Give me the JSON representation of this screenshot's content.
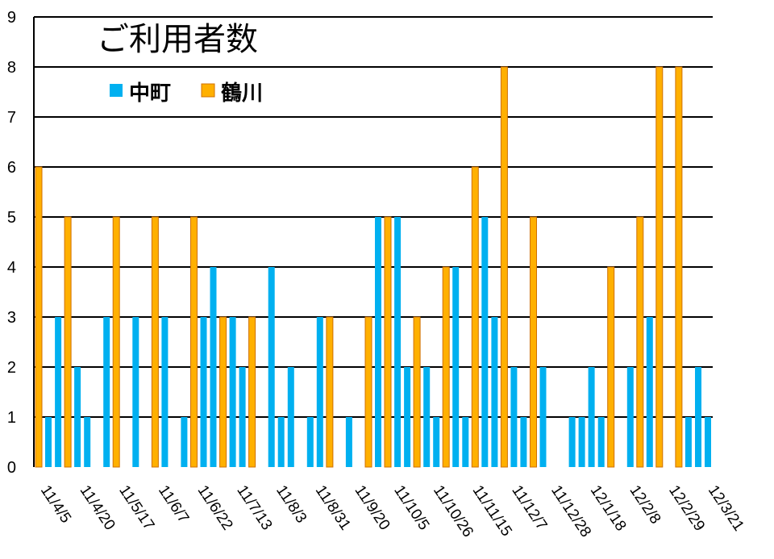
{
  "chart_data": {
    "type": "bar",
    "title": "ご利用者数",
    "xlabel": "",
    "ylabel": "",
    "ylim": [
      0,
      9
    ],
    "yticks": [
      0,
      1,
      2,
      3,
      4,
      5,
      6,
      7,
      8,
      9
    ],
    "grid": true,
    "legend_position": "top-left",
    "x_tick_labels": [
      "11/4/5",
      "11/4/20",
      "11/5/17",
      "11/6/7",
      "11/6/22",
      "11/7/13",
      "11/8/3",
      "11/8/31",
      "11/9/20",
      "11/10/5",
      "11/10/26",
      "11/11/15",
      "11/12/7",
      "11/12/28",
      "12/1/18",
      "12/2/8",
      "12/2/29",
      "12/3/21"
    ],
    "series": [
      {
        "name": "中町",
        "color": "#00B0F0",
        "values": [
          0,
          1,
          3,
          0,
          2,
          1,
          0,
          3,
          0,
          0,
          3,
          0,
          0,
          3,
          0,
          1,
          0,
          3,
          4,
          0,
          3,
          2,
          0,
          0,
          4,
          1,
          2,
          0,
          1,
          3,
          0,
          0,
          1,
          0,
          0,
          5,
          0,
          5,
          2,
          0,
          2,
          1,
          0,
          4,
          1,
          0,
          5,
          3,
          0,
          2,
          1,
          0,
          2,
          0,
          0,
          1,
          1,
          2,
          1,
          0,
          0,
          2,
          0,
          3,
          0,
          0,
          3,
          1,
          2,
          1
        ]
      },
      {
        "name": "鶴川",
        "color": "#FFB000",
        "values": [
          6,
          0,
          0,
          5,
          0,
          0,
          0,
          0,
          5,
          0,
          0,
          0,
          5,
          0,
          0,
          0,
          5,
          0,
          0,
          3,
          0,
          0,
          3,
          0,
          0,
          0,
          0,
          0,
          0,
          0,
          3,
          0,
          0,
          0,
          3,
          0,
          5,
          0,
          0,
          3,
          0,
          0,
          4,
          0,
          0,
          6,
          0,
          0,
          8,
          0,
          0,
          5,
          0,
          0,
          0,
          0,
          0,
          0,
          0,
          4,
          0,
          0,
          5,
          0,
          8,
          0,
          8,
          0,
          0,
          0
        ]
      }
    ]
  }
}
